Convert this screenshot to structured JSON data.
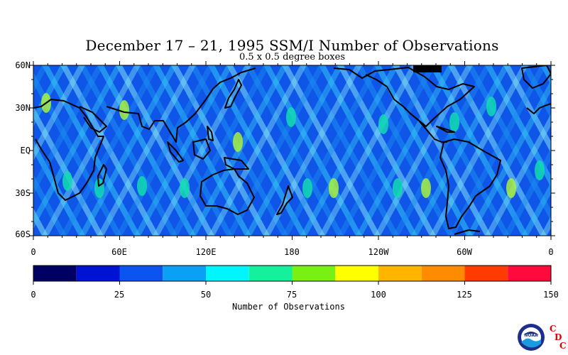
{
  "title": "December 17 – 21, 1995 SSM/I Number of Observations",
  "subtitle": "0.5 x 0.5 degree boxes",
  "map": {
    "projection": "equirectangular",
    "lon_range": [
      0,
      360
    ],
    "lat_range": [
      -60,
      60
    ],
    "lat_labels": [
      "60N",
      "30N",
      "EQ",
      "30S",
      "60S"
    ],
    "lon_labels": [
      "0",
      "60E",
      "120E",
      "180",
      "120W",
      "60W",
      "0"
    ],
    "field": "SSM/I observation counts per 0.5 x 0.5 degree box, shown as diagonal satellite swath bands",
    "background_colors": [
      "#0f55e8",
      "#1b8ff0",
      "#35c6f5",
      "#7fe2f6",
      "#10dcb0",
      "#a8f040"
    ]
  },
  "colorbar": {
    "title": "Number of Observations",
    "tick_labels": [
      "0",
      "25",
      "50",
      "75",
      "100",
      "125",
      "150"
    ],
    "bins": [
      {
        "from": 0,
        "to": 12.5,
        "color": "#000064"
      },
      {
        "from": 12.5,
        "to": 25,
        "color": "#0013d2"
      },
      {
        "from": 25,
        "to": 37.5,
        "color": "#0a55f0"
      },
      {
        "from": 37.5,
        "to": 50,
        "color": "#0aa0f5"
      },
      {
        "from": 50,
        "to": 62.5,
        "color": "#00f5ff"
      },
      {
        "from": 62.5,
        "to": 75,
        "color": "#14f09b"
      },
      {
        "from": 75,
        "to": 87.5,
        "color": "#78f014"
      },
      {
        "from": 87.5,
        "to": 100,
        "color": "#ffff00"
      },
      {
        "from": 100,
        "to": 112.5,
        "color": "#ffb400"
      },
      {
        "from": 112.5,
        "to": 125,
        "color": "#ff8c00"
      },
      {
        "from": 125,
        "to": 137.5,
        "color": "#ff3c00"
      },
      {
        "from": 137.5,
        "to": 150,
        "color": "#ff0a3c"
      }
    ]
  },
  "logo": {
    "name": "noaa-logo",
    "text": "NOAA",
    "letters": [
      "C",
      "D",
      "C"
    ],
    "letter_color": "#e00000"
  }
}
